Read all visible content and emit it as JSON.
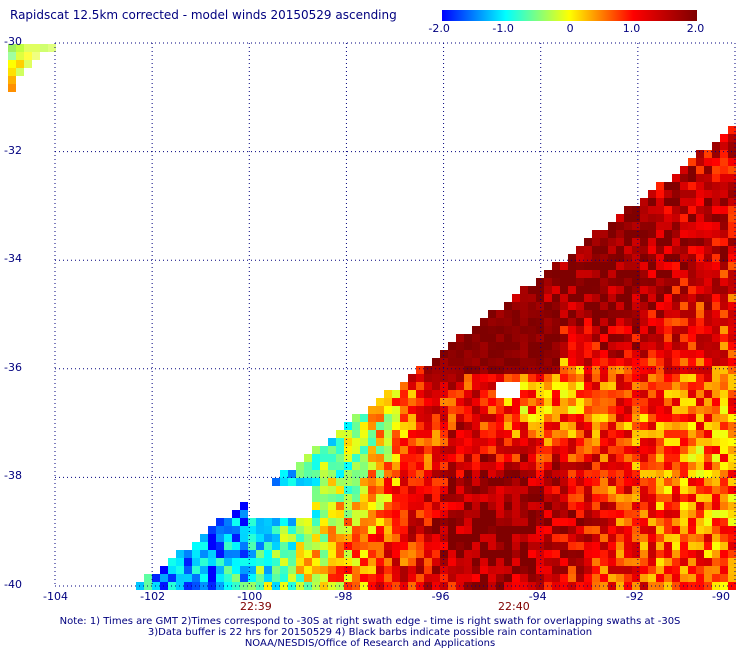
{
  "title": "Rapidscat 12.5km corrected - model winds 20150529 ascending",
  "colorbar": {
    "ticks": [
      "-2.0",
      "-1.0",
      "0",
      "1.0",
      "2.0"
    ],
    "colors": [
      "#0000ff",
      "#00ffff",
      "#ffff00",
      "#ff0000",
      "#7f0000"
    ]
  },
  "lat_labels": [
    "-30",
    "-32",
    "-34",
    "-36",
    "-38",
    "-40"
  ],
  "lon_labels": [
    "-104",
    "-102",
    "-100",
    "-98",
    "-96",
    "-94",
    "-92",
    "-90"
  ],
  "time_labels": [
    "22:39",
    "22:40"
  ],
  "notes": [
    "Note: 1) Times are GMT 2)Times correspond to -30S at right swath edge - time is right swath for overlapping swaths at -30S",
    "3)Data buffer is 22 hrs for 20150529 4) Black barbs indicate possible rain contamination",
    "NOAA/NESDIS/Office of Research and Applications"
  ],
  "map": {
    "lat_range": [
      -40,
      -30
    ],
    "lon_range": [
      -104,
      -90
    ]
  }
}
